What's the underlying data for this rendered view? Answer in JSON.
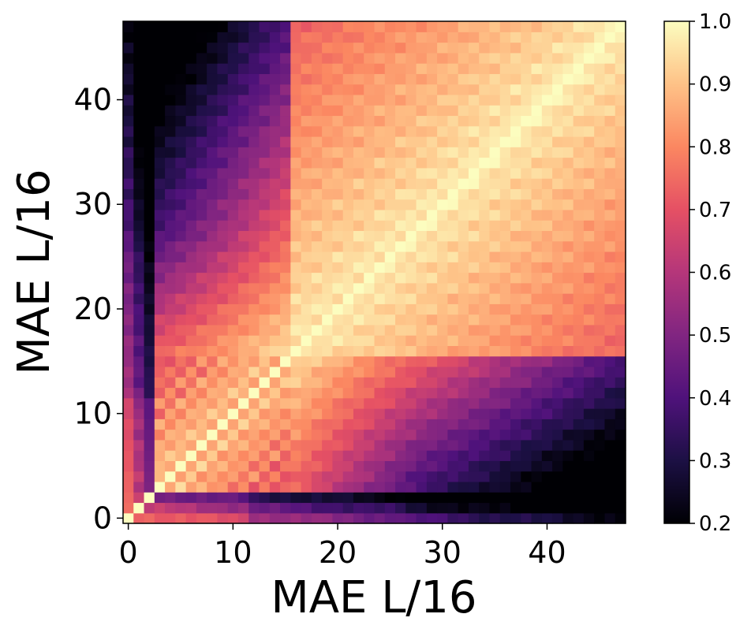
{
  "chart_data": {
    "type": "heatmap",
    "title": "",
    "xlabel": "MAE L/16",
    "ylabel": "MAE L/16",
    "x_range": [
      0,
      47
    ],
    "y_range": [
      0,
      47
    ],
    "n_cells": 48,
    "x_ticks": [
      0,
      10,
      20,
      30,
      40
    ],
    "y_ticks": [
      0,
      10,
      20,
      30,
      40
    ],
    "y_origin": "bottom",
    "colormap": "magma",
    "colorbar": {
      "range": [
        0.2,
        1.0
      ],
      "ticks": [
        "0.2",
        "0.3",
        "0.4",
        "0.5",
        "0.6",
        "0.7",
        "0.8",
        "0.9",
        "1.0"
      ],
      "placement": "right"
    },
    "symmetric": true,
    "diagonal_value": 1.0,
    "grid": false,
    "description_values": {
      "row0_row1_row2_vs_late_layers": 0.25,
      "early_layers_vs_late_layers": 0.4,
      "mid_block_similarity_layers_20_to_47": 0.9
    }
  }
}
